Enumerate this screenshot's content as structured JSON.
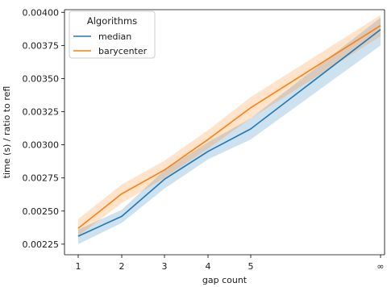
{
  "chart_data": {
    "type": "line",
    "title": "",
    "xlabel": "gap count",
    "ylabel": "time (s) / ratio to refl",
    "x_ticks": [
      "1",
      "2",
      "3",
      "4",
      "5",
      "∞"
    ],
    "y_ticks": [
      "0.00225",
      "0.00250",
      "0.00275",
      "0.00300",
      "0.00325",
      "0.00350",
      "0.00375",
      "0.00400"
    ],
    "ylim": [
      0.00217,
      0.00402
    ],
    "grid": false,
    "legend": {
      "title": "Algorithms",
      "placement": "top-left"
    },
    "categories": [
      "1",
      "2",
      "3",
      "4",
      "5",
      "∞"
    ],
    "series": [
      {
        "name": "median",
        "color": "#1f77b4",
        "values": [
          0.00231,
          0.00246,
          0.00274,
          0.00295,
          0.00312,
          0.00387
        ],
        "ci_lower": [
          0.00225,
          0.00241,
          0.00267,
          0.00289,
          0.00304,
          0.00375
        ],
        "ci_upper": [
          0.00236,
          0.00251,
          0.00281,
          0.00302,
          0.0032,
          0.00396
        ]
      },
      {
        "name": "barycenter",
        "color": "#ff7f0e",
        "values": [
          0.00237,
          0.00263,
          0.00281,
          0.00304,
          0.00328,
          0.0039
        ],
        "ci_lower": [
          0.00231,
          0.00256,
          0.00275,
          0.00297,
          0.0032,
          0.00382
        ],
        "ci_upper": [
          0.00244,
          0.0027,
          0.00288,
          0.00311,
          0.00336,
          0.00398
        ]
      }
    ]
  }
}
